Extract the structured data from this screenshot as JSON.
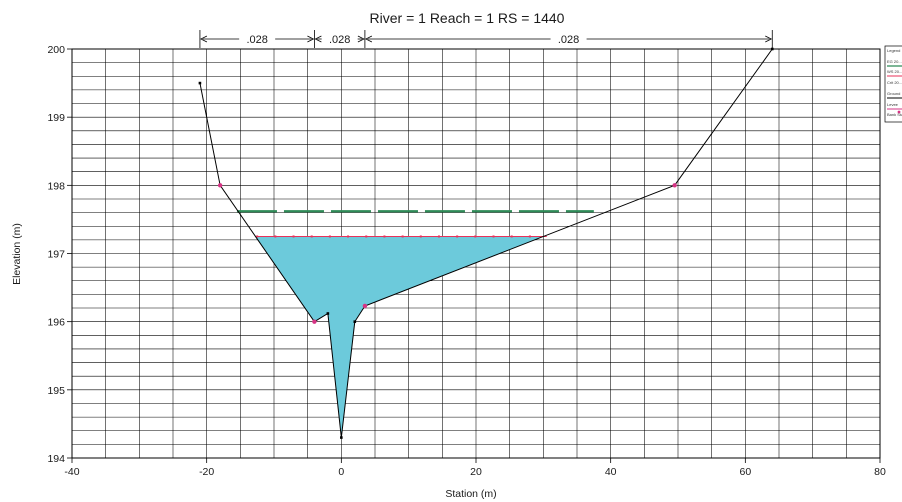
{
  "chart_data": {
    "type": "area",
    "title": "River = 1   Reach = 1      RS = 1440",
    "xlabel": "Station (m)",
    "ylabel": "Elevation (m)",
    "xlim": [
      -40,
      80
    ],
    "ylim": [
      194,
      200
    ],
    "x_ticks": [
      "-40",
      "-20",
      "0",
      "20",
      "40",
      "60",
      "80"
    ],
    "y_ticks": [
      "194",
      "195",
      "196",
      "197",
      "198",
      "199",
      "200"
    ],
    "grid": true,
    "legend_position": "right (clipped)",
    "legend_entries": [
      "Legend",
      "EG 20...",
      "WS 20...",
      "Crit 20...",
      "Ground",
      "Levee",
      "Bank Sta"
    ],
    "manning_n": [
      {
        "label": ".028",
        "x_start": -21,
        "x_end": -4
      },
      {
        "label": ".028",
        "x_start": -4,
        "x_end": 3.5
      },
      {
        "label": ".028",
        "x_start": 3.5,
        "x_end": 64
      }
    ],
    "series": [
      {
        "name": "Ground",
        "x": [
          -21,
          -18,
          -4,
          -2,
          0,
          2,
          3.5,
          49.5,
          64
        ],
        "y": [
          199.5,
          198.0,
          196.0,
          196.12,
          194.3,
          196.0,
          196.23,
          198.0,
          200.0
        ]
      },
      {
        "name": "WS",
        "elevation": 197.25,
        "x_range": [
          -12.5,
          30.5
        ]
      },
      {
        "name": "EG",
        "elevation": 197.62,
        "x_range": [
          -15.5,
          37.5
        ]
      },
      {
        "name": "Bank Sta",
        "x": [
          -18,
          -4,
          3.5,
          49.5
        ],
        "y": [
          198.0,
          196.0,
          196.23,
          198.0
        ]
      }
    ],
    "colors": {
      "water_fill": "#6ccadb",
      "ground_line": "#000000",
      "ws_line": "#e8325a",
      "eg_line": "#2e8b57",
      "bank_marker": "#d63384",
      "grid": "#000000"
    }
  }
}
